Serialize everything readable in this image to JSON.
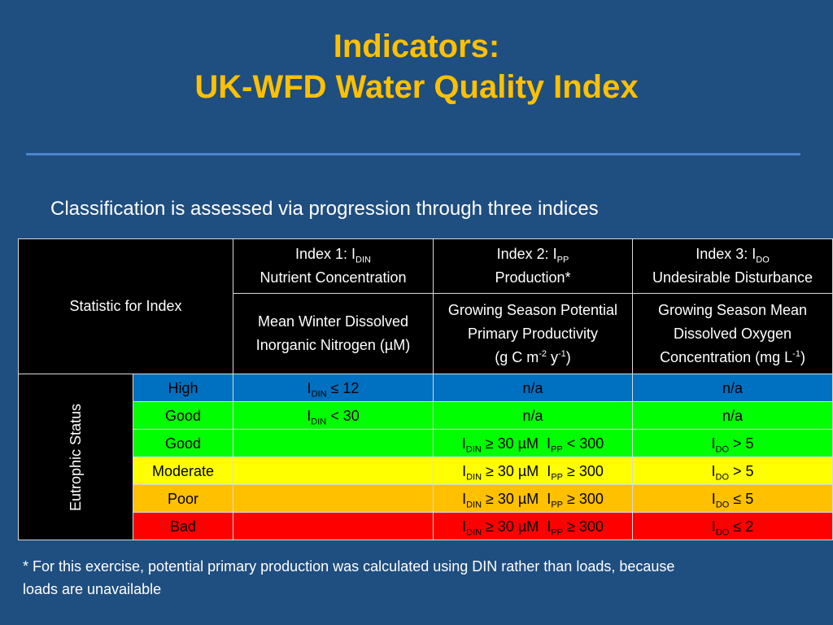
{
  "slide": {
    "title_line1": "Indicators:",
    "title_line2": "UK-WFD Water Quality Index",
    "intro": "Classification is assessed via progression through three indices",
    "footnote": "* For this exercise, potential primary production was calculated using DIN rather than loads, because loads are unavailable"
  },
  "table": {
    "statistic_label": "Statistic for Index",
    "row_group_label": "Eutrophic Status",
    "headers": [
      {
        "index_prefix": "Index 1: I",
        "index_sub": "DIN",
        "name": "Nutrient Concentration",
        "stat_line1": "Mean Winter Dissolved",
        "stat_line2": "Inorganic Nitrogen (µM)",
        "stat_line3": ""
      },
      {
        "index_prefix": "Index 2: I",
        "index_sub": "PP",
        "name": "Production*",
        "stat_line1": "Growing Season Potential",
        "stat_line2": "Primary Productivity",
        "stat_line3_a": "(g C m",
        "stat_line3_sup1": "-2",
        "stat_line3_b": " y",
        "stat_line3_sup2": "-1",
        "stat_line3_c": ")"
      },
      {
        "index_prefix": "Index 3: I",
        "index_sub": "DO",
        "name": "Undesirable Disturbance",
        "stat_line1": "Growing Season Mean",
        "stat_line2": "Dissolved Oxygen",
        "stat_line3_a": "Concentration (mg L",
        "stat_line3_sup1": "-1",
        "stat_line3_c": ")"
      }
    ],
    "rows": [
      {
        "status": "High",
        "color": "#0070c0",
        "c1": {
          "pre": "I",
          "sub": "DIN",
          "post": " ≤ 12"
        },
        "c2": "n/a",
        "c3": "n/a"
      },
      {
        "status": "Good",
        "color": "#00ff00",
        "c1": {
          "pre": "I",
          "sub": "DIN",
          "post": " < 30"
        },
        "c2": "n/a",
        "c3": "n/a"
      },
      {
        "status": "Good",
        "color": "#00ff00",
        "c2": {
          "a": "I",
          "a_sub": "DIN",
          "b": " ≥ 30 µM  I",
          "b_sub": "PP",
          "c": " < 300"
        },
        "c3": {
          "pre": "I",
          "sub": "DO",
          "post": " > 5"
        }
      },
      {
        "status": "Moderate",
        "color": "#ffff00",
        "c2": {
          "a": "I",
          "a_sub": "DIN",
          "b": " ≥ 30 µM  I",
          "b_sub": "PP",
          "c": " ≥ 300"
        },
        "c3": {
          "pre": "I",
          "sub": "DO",
          "post": " > 5"
        }
      },
      {
        "status": "Poor",
        "color": "#ffc000",
        "c2": {
          "a": "I",
          "a_sub": "DIN",
          "b": " ≥ 30 µM  I",
          "b_sub": "PP",
          "c": " ≥ 300"
        },
        "c3": {
          "pre": "I",
          "sub": "DO",
          "post": " ≤ 5"
        }
      },
      {
        "status": "Bad",
        "color": "#ff0000",
        "c2": {
          "a": "I",
          "a_sub": "DIN",
          "b": " ≥ 30 µM  I",
          "b_sub": "PP",
          "c": " ≥ 300"
        },
        "c3": {
          "pre": "I",
          "sub": "DO",
          "post": " ≤ 2"
        }
      }
    ]
  }
}
